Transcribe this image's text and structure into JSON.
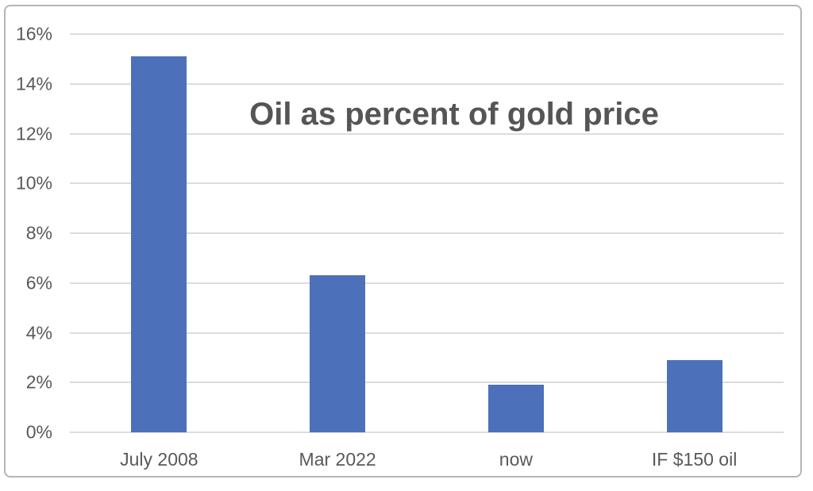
{
  "chart_data": {
    "type": "bar",
    "title": "Oil as percent of gold price",
    "categories": [
      "July 2008",
      "Mar 2022",
      "now",
      "IF $150 oil"
    ],
    "values": [
      15.1,
      6.3,
      1.9,
      2.9
    ],
    "unit": "%",
    "y_ticks": [
      "0%",
      "2%",
      "4%",
      "6%",
      "8%",
      "10%",
      "12%",
      "14%",
      "16%"
    ],
    "ylim": [
      0,
      16
    ],
    "y_step": 2,
    "grid": "horizontal",
    "legend": "none",
    "colors": {
      "bar": "#4d70ba",
      "gridline": "#dcdcdc",
      "tick_text": "#595959",
      "title_text": "#555555",
      "frame_border": "#b5b5b5",
      "background": "#ffffff"
    }
  }
}
